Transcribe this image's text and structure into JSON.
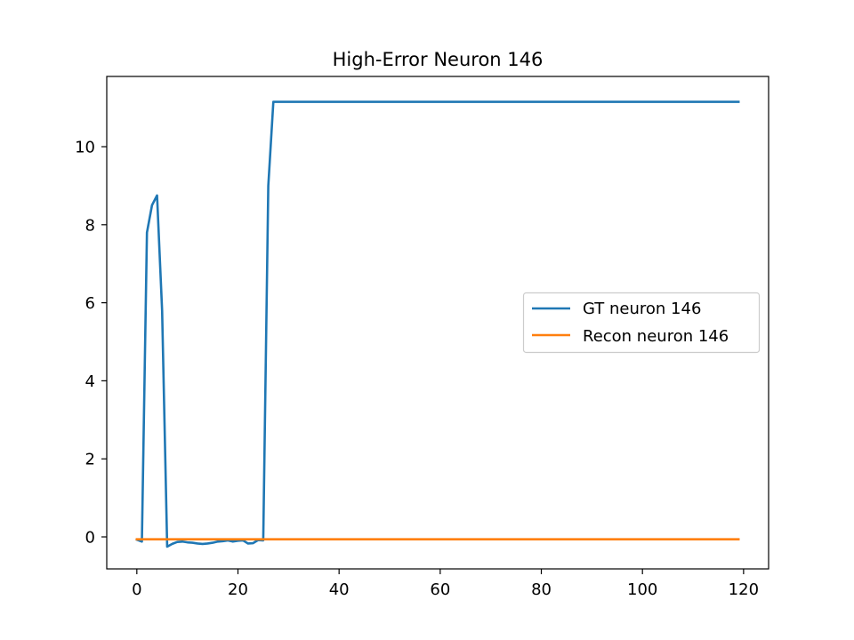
{
  "chart_data": {
    "type": "line",
    "title": "High-Error Neuron 146",
    "xlabel": "",
    "ylabel": "",
    "xlim": [
      -5.95,
      124.95
    ],
    "ylim": [
      -0.82,
      11.8
    ],
    "xticks": [
      0,
      20,
      40,
      60,
      80,
      100,
      120
    ],
    "xtick_labels": [
      "0",
      "20",
      "40",
      "60",
      "80",
      "100",
      "120"
    ],
    "yticks": [
      0,
      2,
      4,
      6,
      8,
      10
    ],
    "ytick_labels": [
      "0",
      "2",
      "4",
      "6",
      "8",
      "10"
    ],
    "grid": false,
    "legend_position": "center-right",
    "series": [
      {
        "name": "GT neuron 146",
        "color": "#1f77b4",
        "x": [
          0,
          1,
          2,
          3,
          4,
          5,
          6,
          7,
          8,
          9,
          10,
          11,
          12,
          13,
          14,
          15,
          16,
          17,
          18,
          19,
          20,
          21,
          22,
          23,
          24,
          25,
          26,
          27,
          119
        ],
        "y": [
          -0.07,
          -0.12,
          7.8,
          8.5,
          8.75,
          5.8,
          -0.25,
          -0.18,
          -0.13,
          -0.12,
          -0.14,
          -0.15,
          -0.17,
          -0.18,
          -0.17,
          -0.15,
          -0.12,
          -0.11,
          -0.09,
          -0.12,
          -0.1,
          -0.09,
          -0.17,
          -0.16,
          -0.08,
          -0.09,
          9.0,
          11.15,
          11.15
        ]
      },
      {
        "name": "Recon neuron 146",
        "color": "#ff7f0e",
        "x": [
          0,
          119
        ],
        "y": [
          -0.06,
          -0.06
        ]
      }
    ]
  }
}
